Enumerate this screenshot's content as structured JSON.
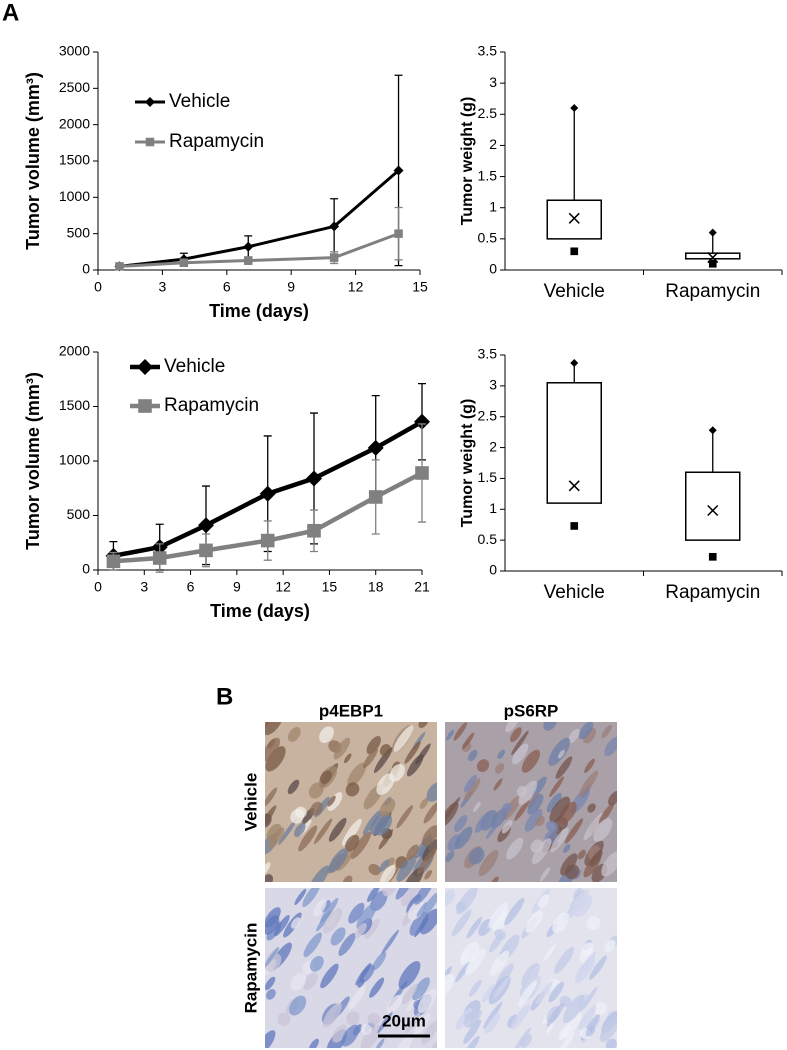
{
  "panel_labels": [
    "A",
    "B"
  ],
  "chart_data": [
    {
      "type": "line",
      "ylabel": "Tumor volume (mm³)",
      "xlabel": "Time (days)",
      "x": [
        1,
        4,
        7,
        11,
        14
      ],
      "xlim": [
        0,
        15
      ],
      "xticks": [
        0,
        3,
        6,
        9,
        12,
        15
      ],
      "ylim": [
        0,
        3000
      ],
      "yticks": [
        0,
        500,
        1000,
        1500,
        2000,
        2500,
        3000
      ],
      "series": [
        {
          "name": "Vehicle",
          "color": "#000000",
          "marker": "diamond",
          "values": [
            50,
            150,
            320,
            600,
            1370
          ],
          "errors": [
            20,
            80,
            150,
            380,
            1310
          ]
        },
        {
          "name": "Rapamycin",
          "color": "#808080",
          "marker": "square",
          "values": [
            50,
            100,
            130,
            170,
            500
          ],
          "errors": [
            10,
            30,
            50,
            80,
            360
          ]
        }
      ]
    },
    {
      "type": "box",
      "ylabel": "Tumor weight (g)",
      "categories": [
        "Vehicle",
        "Rapamycin"
      ],
      "ylim": [
        0,
        3.5
      ],
      "yticks": [
        0,
        0.5,
        1,
        1.5,
        2,
        2.5,
        3,
        3.5
      ],
      "color": "#000000",
      "boxes": [
        {
          "q1": 0.5,
          "q3": 1.12,
          "mean": 0.83,
          "max": 2.6,
          "min": 0.3
        },
        {
          "q1": 0.18,
          "q3": 0.27,
          "mean": 0.2,
          "max": 0.6,
          "min": 0.1
        }
      ]
    },
    {
      "type": "line",
      "ylabel": "Tumor volume (mm³)",
      "xlabel": "Time (days)",
      "x": [
        1,
        4,
        7,
        11,
        14,
        18,
        21
      ],
      "xlim": [
        0,
        21
      ],
      "xticks": [
        0,
        3,
        6,
        9,
        12,
        15,
        18,
        21
      ],
      "ylim": [
        0,
        2000
      ],
      "yticks": [
        0,
        500,
        1000,
        1500,
        2000
      ],
      "series": [
        {
          "name": "Vehicle",
          "color": "#000000",
          "marker": "diamond",
          "values": [
            130,
            210,
            410,
            700,
            840,
            1120,
            1360
          ],
          "errors": [
            130,
            210,
            360,
            530,
            600,
            480,
            350
          ]
        },
        {
          "name": "Rapamycin",
          "color": "#808080",
          "marker": "square",
          "values": [
            80,
            110,
            180,
            270,
            360,
            670,
            890
          ],
          "errors": [
            80,
            130,
            150,
            180,
            190,
            340,
            450
          ]
        }
      ]
    },
    {
      "type": "box",
      "ylabel": "Tumor weight (g)",
      "categories": [
        "Vehicle",
        "Rapamycin"
      ],
      "ylim": [
        0,
        3.5
      ],
      "yticks": [
        0,
        0.5,
        1,
        1.5,
        2,
        2.5,
        3,
        3.5
      ],
      "color": "#000000",
      "boxes": [
        {
          "q1": 1.1,
          "q3": 3.05,
          "mean": 1.38,
          "max": 3.37,
          "min": 0.73
        },
        {
          "q1": 0.5,
          "q3": 1.6,
          "mean": 0.98,
          "max": 2.28,
          "min": 0.23
        }
      ]
    }
  ],
  "staining": {
    "columns": [
      "p4EBP1",
      "pS6RP"
    ],
    "rows": [
      "Vehicle",
      "Rapamycin"
    ],
    "scale_bar": "20µm"
  }
}
